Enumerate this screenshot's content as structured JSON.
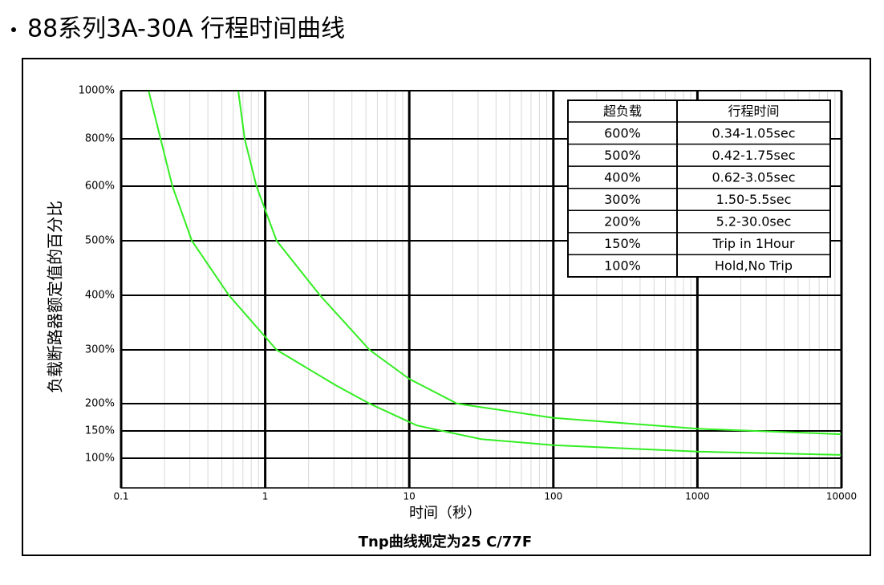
{
  "title": "88系列3A-30A 行程时间曲线",
  "chart_data": {
    "type": "line",
    "xscale": "log",
    "xlabel": "时间（秒）",
    "note": "Tnp曲线规定为25 C/77F",
    "ylabel": "负载断路器额定值的百分比",
    "xlim": [
      0.1,
      10000
    ],
    "xticks": [
      0.1,
      1,
      10,
      100,
      1000,
      10000
    ],
    "ylim": [
      50,
      1000
    ],
    "yticks": [
      {
        "value": 100,
        "label": "100%"
      },
      {
        "value": 150,
        "label": "150%"
      },
      {
        "value": 200,
        "label": "200%"
      },
      {
        "value": 300,
        "label": "300%"
      },
      {
        "value": 400,
        "label": "400%"
      },
      {
        "value": 500,
        "label": "500%"
      },
      {
        "value": 600,
        "label": "600%"
      },
      {
        "value": 800,
        "label": "800%"
      },
      {
        "value": 1000,
        "label": "1000%"
      }
    ],
    "grid": true,
    "series": [
      {
        "color": "#33ee22",
        "x": [
          0.155,
          0.227,
          0.31,
          0.56,
          1.2,
          3.1,
          5.3,
          11.3,
          31.6,
          100,
          1000,
          10000
        ],
        "values": [
          1000,
          600,
          500,
          400,
          300,
          234,
          200,
          160,
          135,
          124,
          112,
          106
        ]
      },
      {
        "color": "#33ee22",
        "x": [
          0.65,
          0.72,
          0.87,
          1.2,
          2.4,
          5.3,
          10,
          21.5,
          100,
          1000,
          10000
        ],
        "values": [
          1000,
          800,
          600,
          500,
          400,
          300,
          246,
          200,
          174,
          154,
          144
        ]
      }
    ],
    "table": {
      "columns": [
        "超负载",
        "行程时间"
      ],
      "rows": [
        [
          "600%",
          "0.34-1.05sec"
        ],
        [
          "500%",
          "0.42-1.75sec"
        ],
        [
          "400%",
          "0.62-3.05sec"
        ],
        [
          "300%",
          "1.50-5.5sec"
        ],
        [
          "200%",
          "5.2-30.0sec"
        ],
        [
          "150%",
          "Trip in 1Hour"
        ],
        [
          "100%",
          "Hold,No Trip"
        ]
      ]
    }
  }
}
